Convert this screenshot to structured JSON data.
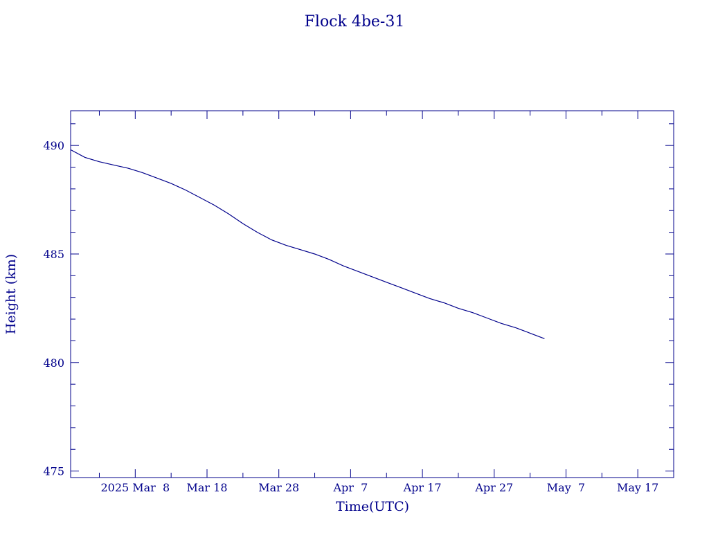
{
  "chart_data": {
    "type": "line",
    "title": "Flock 4be-31",
    "xlabel": "Time(UTC)",
    "ylabel": "Height (km)",
    "x_tick_labels": [
      "2025 Mar  8",
      "Mar 18",
      "Mar 28",
      "Apr  7",
      "Apr 17",
      "Apr 27",
      "May  7",
      "May 17"
    ],
    "x_ticks": [
      "2025-03-08",
      "2025-03-18",
      "2025-03-28",
      "2025-04-07",
      "2025-04-17",
      "2025-04-27",
      "2025-05-07",
      "2025-05-17"
    ],
    "xlim": [
      "2025-02-27",
      "2025-05-22"
    ],
    "y_tick_labels": [
      "475",
      "480",
      "485",
      "490"
    ],
    "y_ticks": [
      475,
      480,
      485,
      490
    ],
    "ylim": [
      474.7,
      491.6
    ],
    "grid": false,
    "series": [
      {
        "x": [
          "2025-02-27",
          "2025-03-01",
          "2025-03-03",
          "2025-03-05",
          "2025-03-07",
          "2025-03-09",
          "2025-03-11",
          "2025-03-13",
          "2025-03-15",
          "2025-03-17",
          "2025-03-19",
          "2025-03-21",
          "2025-03-23",
          "2025-03-25",
          "2025-03-27",
          "2025-03-29",
          "2025-03-31",
          "2025-04-02",
          "2025-04-04",
          "2025-04-06",
          "2025-04-08",
          "2025-04-10",
          "2025-04-12",
          "2025-04-14",
          "2025-04-16",
          "2025-04-18",
          "2025-04-20",
          "2025-04-22",
          "2025-04-24",
          "2025-04-26",
          "2025-04-28",
          "2025-04-30",
          "2025-05-02",
          "2025-05-04"
        ],
        "values": [
          489.8,
          489.45,
          489.25,
          489.1,
          488.95,
          488.75,
          488.5,
          488.25,
          487.95,
          487.6,
          487.25,
          486.85,
          486.4,
          486.0,
          485.65,
          485.4,
          485.2,
          485.0,
          484.75,
          484.45,
          484.2,
          483.95,
          483.7,
          483.45,
          483.2,
          482.95,
          482.75,
          482.5,
          482.3,
          482.05,
          481.8,
          481.6,
          481.35,
          481.1
        ]
      }
    ]
  }
}
